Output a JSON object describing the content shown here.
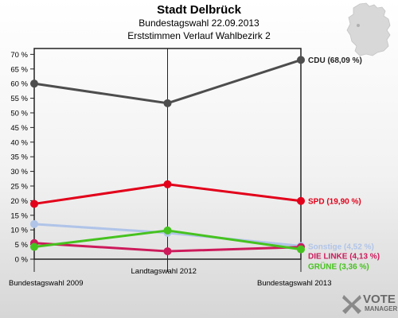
{
  "header": {
    "title": "Stadt Delbrück",
    "subtitle1": "Bundestagswahl 22.09.2013",
    "subtitle2": "Erststimmen Verlauf Wahlbezirk 2"
  },
  "logo": {
    "word": "VOTE",
    "sub": "MANAGER"
  },
  "chart_data": {
    "type": "line",
    "title": "Stadt Delbrück",
    "categories": [
      "Bundestagswahl 2009",
      "Landtagswahl 2012",
      "Bundestagswahl 2013"
    ],
    "y_ticks": [
      "0 %",
      "5 %",
      "10 %",
      "15 %",
      "20 %",
      "25 %",
      "30 %",
      "35 %",
      "40 %",
      "45 %",
      "50 %",
      "55 %",
      "60 %",
      "65 %",
      "70 %"
    ],
    "ylim": [
      0,
      72
    ],
    "grid": false,
    "series": [
      {
        "name": "CDU",
        "label": "CDU (68,09 %)",
        "color": "#4d4d4d",
        "values": [
          60.0,
          53.3,
          68.09
        ]
      },
      {
        "name": "SPD",
        "label": "SPD (19,90 %)",
        "color": "#e2001a",
        "values": [
          18.9,
          25.6,
          19.9
        ]
      },
      {
        "name": "Sonstige",
        "label": "Sonstige (4,52 %)",
        "color": "#b0c4e8",
        "values": [
          12.0,
          9.0,
          4.52
        ]
      },
      {
        "name": "DIE LINKE",
        "label": "DIE LINKE (4,13 %)",
        "color": "#cc1a5a",
        "values": [
          5.5,
          2.7,
          4.13
        ]
      },
      {
        "name": "GRÜNE",
        "label": "GRÜNE (3,36 %)",
        "color": "#46c21f",
        "values": [
          4.2,
          9.8,
          3.36
        ]
      }
    ]
  }
}
